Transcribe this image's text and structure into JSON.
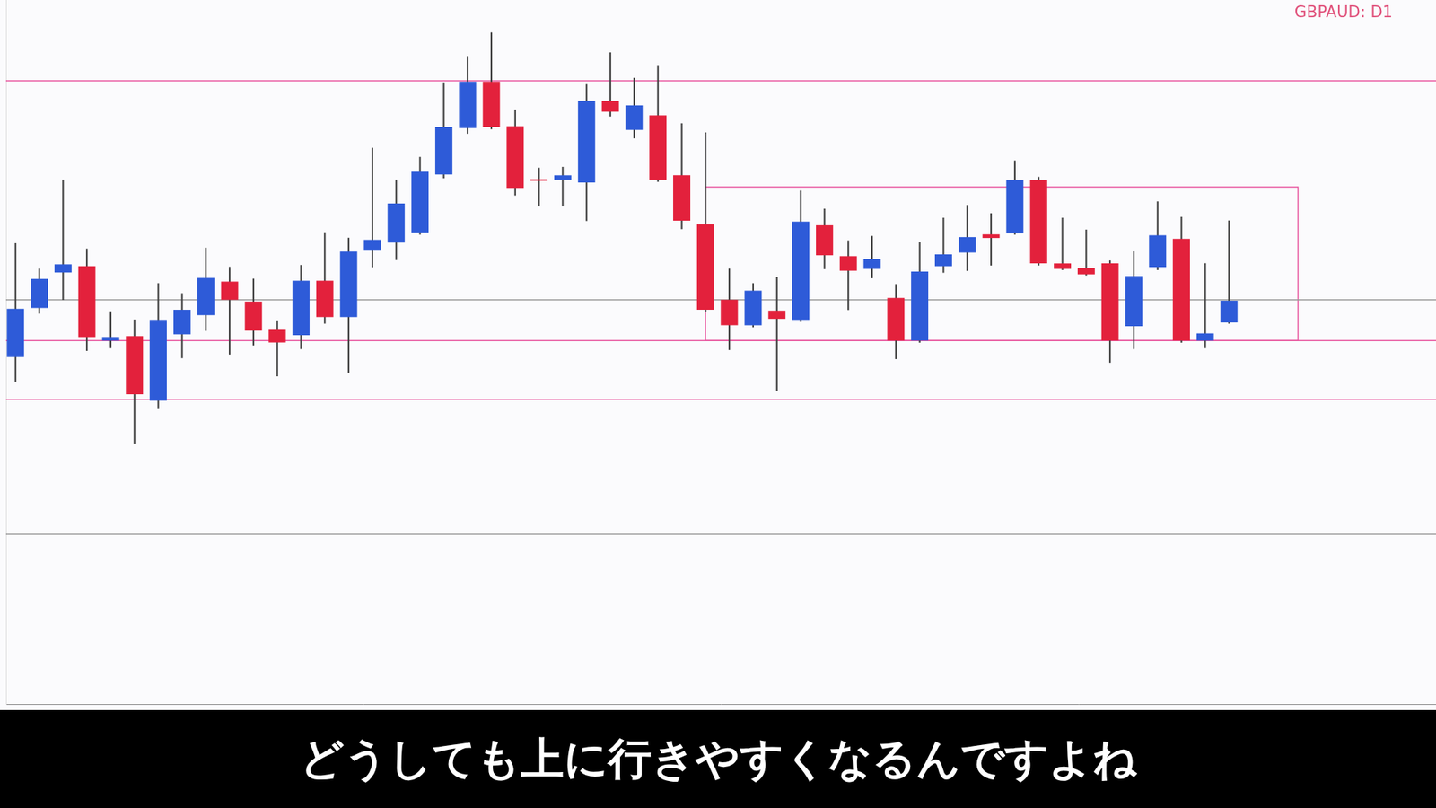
{
  "chart_data": {
    "type": "candlestick",
    "title": "GBPAUD: D1",
    "caption": "どうしても上に行きやすくなるんですよね",
    "x": [
      0,
      1,
      2,
      3,
      4,
      5,
      6,
      7,
      8,
      9,
      10,
      11,
      12,
      13,
      14,
      15,
      16,
      17,
      18,
      19,
      20,
      21,
      22,
      23,
      24,
      25,
      26,
      27,
      28,
      29,
      30,
      31,
      32,
      33,
      34,
      35,
      36,
      37,
      38,
      39,
      40,
      41,
      42,
      43,
      44,
      45,
      46,
      47,
      48,
      49,
      50,
      51
    ],
    "open": [
      382,
      436,
      475,
      482,
      400,
      405,
      334,
      407,
      428,
      465,
      443,
      412,
      406,
      466,
      426,
      499,
      508,
      519,
      583,
      634,
      685,
      636,
      577,
      577,
      574,
      664,
      632,
      648,
      582,
      528,
      445,
      417,
      433,
      423,
      527,
      493,
      479,
      447,
      400,
      482,
      497,
      517,
      518,
      577,
      485,
      480,
      485,
      416,
      481,
      512,
      400,
      420
    ],
    "high": [
      507,
      479,
      577,
      501,
      432,
      423,
      463,
      452,
      502,
      481,
      468,
      422,
      483,
      519,
      513,
      612,
      577,
      602,
      684,
      713,
      739,
      654,
      590,
      591,
      682,
      717,
      689,
      703,
      639,
      629,
      479,
      463,
      470,
      565,
      545,
      510,
      515,
      462,
      508,
      535,
      549,
      540,
      598,
      580,
      535,
      522,
      488,
      498,
      553,
      536,
      485,
      532
    ],
    "low": [
      355,
      430,
      445,
      389,
      392,
      287,
      325,
      381,
      411,
      385,
      395,
      361,
      391,
      419,
      365,
      481,
      489,
      517,
      579,
      628,
      633,
      560,
      548,
      548,
      532,
      647,
      623,
      575,
      523,
      432,
      390,
      415,
      345,
      421,
      479,
      434,
      469,
      380,
      398,
      475,
      477,
      483,
      517,
      483,
      478,
      472,
      376,
      391,
      478,
      398,
      392,
      419
    ],
    "close": [
      435,
      468,
      484,
      404,
      404,
      341,
      423,
      434,
      469,
      445,
      411,
      398,
      466,
      426,
      498,
      511,
      551,
      586,
      635,
      685,
      635,
      568,
      576,
      582,
      664,
      652,
      659,
      577,
      532,
      434,
      417,
      455,
      424,
      531,
      494,
      477,
      490,
      400,
      476,
      495,
      514,
      513,
      577,
      485,
      479,
      473,
      400,
      471,
      516,
      400,
      408,
      444
    ],
    "colors": [
      "#2e5bd8",
      "#2e5bd8",
      "#2e5bd8",
      "#e3213c",
      "#2e5bd8",
      "#e3213c",
      "#2e5bd8",
      "#2e5bd8",
      "#2e5bd8",
      "#e3213c",
      "#e3213c",
      "#e3213c",
      "#2e5bd8",
      "#e3213c",
      "#2e5bd8",
      "#2e5bd8",
      "#2e5bd8",
      "#2e5bd8",
      "#2e5bd8",
      "#2e5bd8",
      "#e3213c",
      "#e3213c",
      "#e3213c",
      "#2e5bd8",
      "#2e5bd8",
      "#e3213c",
      "#2e5bd8",
      "#e3213c",
      "#e3213c",
      "#e3213c",
      "#e3213c",
      "#2e5bd8",
      "#e3213c",
      "#2e5bd8",
      "#e3213c",
      "#e3213c",
      "#2e5bd8",
      "#e3213c",
      "#2e5bd8",
      "#2e5bd8",
      "#2e5bd8",
      "#e3213c",
      "#2e5bd8",
      "#e3213c",
      "#e3213c",
      "#e3213c",
      "#e3213c",
      "#2e5bd8",
      "#2e5bd8",
      "#e3213c",
      "#2e5bd8",
      "#2e5bd8"
    ],
    "xlim": [
      -0.4,
      59.7
    ],
    "ylim": [
      0,
      775
    ],
    "tick_labels": false,
    "grid": false,
    "hlines": [
      {
        "value": 686,
        "color": "#e8559e"
      },
      {
        "value": 445,
        "color": "#9a9a9a"
      },
      {
        "value": 400,
        "color": "#e8559e"
      },
      {
        "value": 335,
        "color": "#e8559e"
      },
      {
        "value": 187,
        "color": "#9a9a9a"
      }
    ],
    "box": {
      "x": [
        29,
        53.9
      ],
      "y": [
        400,
        569
      ],
      "color": "#e8559e"
    }
  }
}
